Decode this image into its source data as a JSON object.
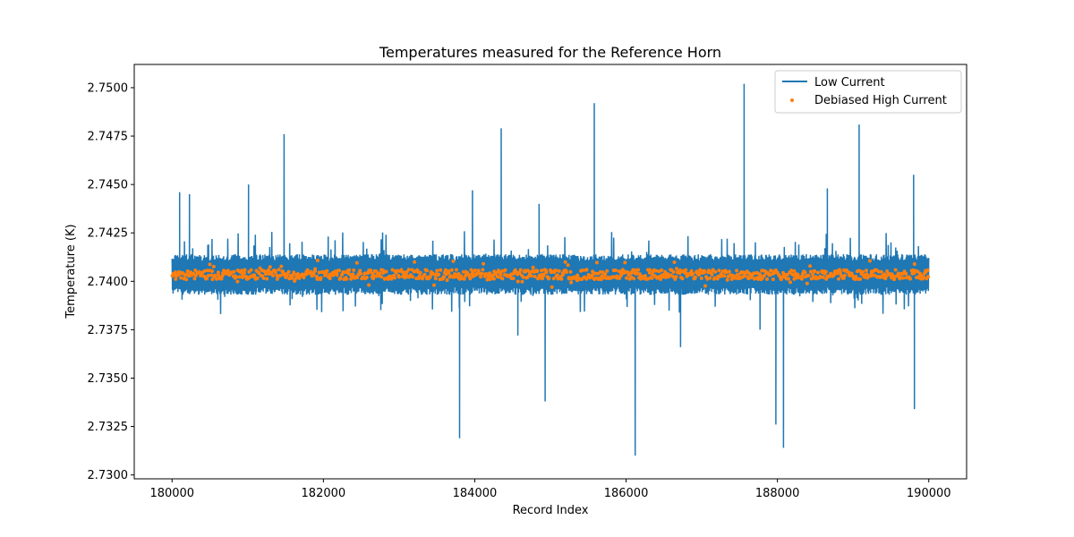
{
  "chart_data": {
    "type": "line",
    "title": "Temperatures measured for the Reference Horn",
    "xlabel": "Record Index",
    "ylabel": "Temperature (K)",
    "xlim": [
      179500,
      190500
    ],
    "ylim": [
      2.7298,
      2.7512
    ],
    "x_ticks": [
      180000,
      182000,
      184000,
      186000,
      188000,
      190000
    ],
    "x_tick_labels": [
      "180000",
      "182000",
      "184000",
      "186000",
      "188000",
      "190000"
    ],
    "y_ticks": [
      2.73,
      2.7325,
      2.735,
      2.7375,
      2.74,
      2.7425,
      2.745,
      2.7475,
      2.75
    ],
    "y_tick_labels": [
      "2.7300",
      "2.7325",
      "2.7350",
      "2.7375",
      "2.7400",
      "2.7425",
      "2.7450",
      "2.7475",
      "2.7500"
    ],
    "legend_position": "top-right",
    "series": [
      {
        "name": "Low Current",
        "kind": "line",
        "color": "#1f77b4",
        "x_range": [
          180000,
          190000
        ],
        "band": {
          "low": 2.7393,
          "high": 2.7414,
          "center": 2.7403
        },
        "spikes": [
          {
            "x": 180100,
            "y": 2.7446
          },
          {
            "x": 180230,
            "y": 2.7445
          },
          {
            "x": 181010,
            "y": 2.745
          },
          {
            "x": 181480,
            "y": 2.7476
          },
          {
            "x": 183970,
            "y": 2.7447
          },
          {
            "x": 184350,
            "y": 2.7479
          },
          {
            "x": 184850,
            "y": 2.744
          },
          {
            "x": 185580,
            "y": 2.7492
          },
          {
            "x": 187560,
            "y": 2.7502
          },
          {
            "x": 188660,
            "y": 2.7448
          },
          {
            "x": 189080,
            "y": 2.7481
          },
          {
            "x": 189800,
            "y": 2.7455
          },
          {
            "x": 183800,
            "y": 2.7319
          },
          {
            "x": 184930,
            "y": 2.7338
          },
          {
            "x": 186120,
            "y": 2.731
          },
          {
            "x": 187980,
            "y": 2.7326
          },
          {
            "x": 188080,
            "y": 2.7314
          },
          {
            "x": 189810,
            "y": 2.7334
          },
          {
            "x": 184570,
            "y": 2.7372
          },
          {
            "x": 186720,
            "y": 2.7366
          },
          {
            "x": 187770,
            "y": 2.7375
          }
        ]
      },
      {
        "name": "Debiased High Current",
        "kind": "scatter",
        "color": "#ff7f0e",
        "x_range": [
          180000,
          190000
        ],
        "band": {
          "low": 2.7401,
          "high": 2.7406,
          "center": 2.74035
        }
      }
    ]
  }
}
